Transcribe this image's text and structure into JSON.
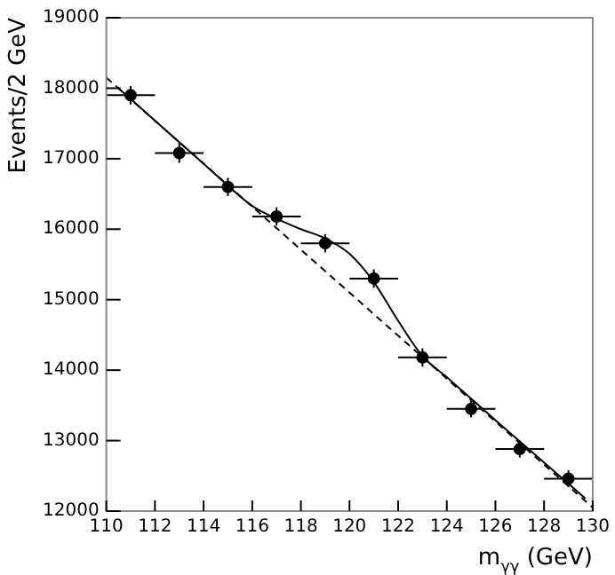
{
  "chart_data": {
    "type": "scatter",
    "xlabel": "m$_{γγ}$ (GeV)",
    "ylabel": "Events/2 GeV",
    "xlim": [
      110,
      130
    ],
    "xticks": [
      110,
      112,
      114,
      116,
      118,
      120,
      122,
      124,
      126,
      128,
      130
    ],
    "ylim": [
      12000,
      19000
    ],
    "yticks": [
      12000,
      13000,
      14000,
      15000,
      16000,
      17000,
      18000,
      19000
    ],
    "grid": false,
    "legend": false,
    "marker": "circle",
    "series": [
      {
        "color": "#000000",
        "x": [
          111,
          113,
          115,
          117,
          119,
          121,
          123,
          125,
          127,
          129
        ],
        "values": [
          17900,
          17080,
          16600,
          16180,
          15800,
          15300,
          14180,
          13450,
          12880,
          12460
        ],
        "errors": [
          130,
          140,
          130,
          130,
          130,
          130,
          130,
          120,
          120,
          120
        ],
        "xerrors": [
          1,
          1,
          1,
          1,
          1,
          1,
          1,
          1,
          1,
          1
        ]
      },
      {
        "type": "line",
        "color": "#000000",
        "line_style": "solid",
        "marker": "none",
        "x": [
          110.5,
          112,
          114,
          116,
          117,
          118,
          119,
          120,
          121,
          122,
          123,
          124,
          126,
          128,
          129.7
        ],
        "values": [
          18000,
          17540,
          16930,
          16330,
          16150,
          16000,
          15870,
          15650,
          15250,
          14700,
          14200,
          13900,
          13290,
          12690,
          12180
        ]
      },
      {
        "type": "line",
        "color": "#000000",
        "line_style": "dashed",
        "marker": "none",
        "x": [
          110,
          130
        ],
        "values": [
          18150,
          12050
        ]
      }
    ]
  }
}
